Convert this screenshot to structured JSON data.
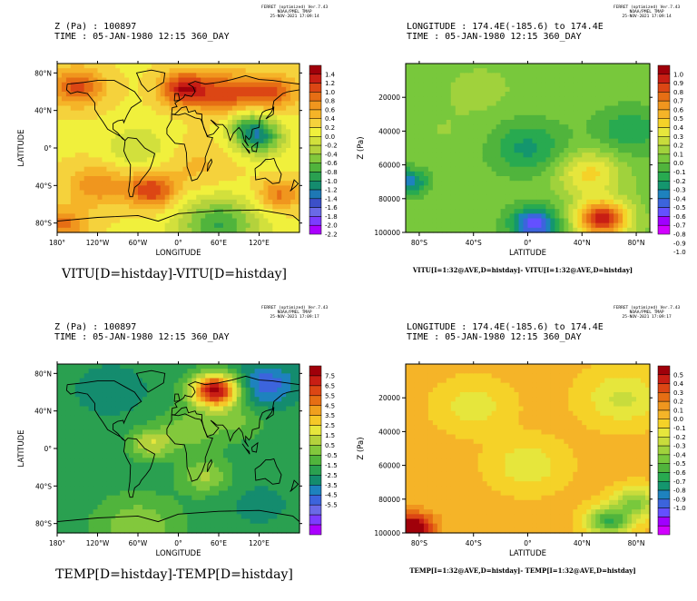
{
  "ferret": {
    "line1": "FERRET (optimized) Ver.7.43",
    "line2": "NOAA/PMEL TMAP",
    "time_top": "25-NOV-2021 17:09:14",
    "time_bottom": "25-NOV-2021 17:09:17"
  },
  "palette": {
    "vitu_map": [
      "#aa00ff",
      "#7c3cff",
      "#6a6ae6",
      "#3c50c8",
      "#1e78b4",
      "#148c6e",
      "#2aa050",
      "#50b43c",
      "#82c83c",
      "#b4d23c",
      "#d2e03c",
      "#f0f03c",
      "#f5d23c",
      "#f5b428",
      "#f0961e",
      "#e66e14",
      "#dc4614",
      "#c81e14",
      "#a0000a"
    ],
    "vitu_xz": [
      "#d200ff",
      "#a000ff",
      "#6450ff",
      "#3c64dc",
      "#1e82be",
      "#14966e",
      "#28aa50",
      "#50b43c",
      "#78c83c",
      "#a0d23c",
      "#c8dc3c",
      "#e6e63c",
      "#f5d228",
      "#f5b428",
      "#f0961e",
      "#e66e14",
      "#dc4614",
      "#c81e14",
      "#a0000a"
    ],
    "temp_map": [
      "#aa00ff",
      "#7c3cff",
      "#6a6ae6",
      "#3c64dc",
      "#1e82be",
      "#148c6e",
      "#2aa050",
      "#50b43c",
      "#82c83c",
      "#b4d23c",
      "#e6e63c",
      "#f5c828",
      "#f0a01e",
      "#e66e14",
      "#dc4614",
      "#c81e14",
      "#a0000a"
    ],
    "temp_xz": [
      "#d200ff",
      "#a000ff",
      "#6450ff",
      "#3c64dc",
      "#1e82be",
      "#14966e",
      "#28aa50",
      "#50b43c",
      "#78c83c",
      "#a0d23c",
      "#c8dc3c",
      "#e6e63c",
      "#f5d228",
      "#f5b428",
      "#f0961e",
      "#e66e14",
      "#dc4614",
      "#c81e14",
      "#a0000a"
    ]
  },
  "chart_data": [
    {
      "type": "heatmap",
      "variable": "VITU",
      "header_line1": "Z (Pa) : 100897",
      "header_line2": "TIME : 05-JAN-1980 12:15 360_DAY",
      "title": "VITU[D=histday]-VITU[D=histday]",
      "xlabel": "LONGITUDE",
      "ylabel": "LATITUDE",
      "xlim": [
        -180,
        180
      ],
      "ylim": [
        -90,
        90
      ],
      "x_ticks": [
        "180°",
        "120°W",
        "60°W",
        "0°",
        "60°E",
        "120°E"
      ],
      "y_ticks": [
        "80°N",
        "40°N",
        "0°",
        "40°S",
        "80°S"
      ],
      "colorbar_labels": [
        "1.4",
        "1.2",
        "1.0",
        "0.8",
        "0.6",
        "0.4",
        "0.2",
        "0.0",
        "-0.2",
        "-0.4",
        "-0.6",
        "-0.8",
        "-1.0",
        "-1.2",
        "-1.4",
        "-1.6",
        "-1.8",
        "-2.0",
        "-2.2"
      ],
      "levels": [
        -2.2,
        1.4
      ],
      "background_value": 0.05,
      "features": [
        {
          "lon": -150,
          "lat": 65,
          "value": 0.9,
          "spread": 1.0
        },
        {
          "lon": 10,
          "lat": 63,
          "value": 1.2,
          "spread": 0.9
        },
        {
          "lon": 75,
          "lat": 58,
          "value": 0.9,
          "spread": 1.1
        },
        {
          "lon": 140,
          "lat": 60,
          "value": 0.8,
          "spread": 0.9
        },
        {
          "lon": 120,
          "lat": 10,
          "value": -1.0,
          "spread": 0.9
        },
        {
          "lon": 105,
          "lat": 25,
          "value": -0.6,
          "spread": 0.8
        },
        {
          "lon": -60,
          "lat": 0,
          "value": -0.3,
          "spread": 1.2
        },
        {
          "lon": -40,
          "lat": -45,
          "value": 1.0,
          "spread": 0.9
        },
        {
          "lon": -120,
          "lat": -40,
          "value": 0.6,
          "spread": 1.1
        },
        {
          "lon": 150,
          "lat": -50,
          "value": 0.7,
          "spread": 0.8
        },
        {
          "lon": 60,
          "lat": -82,
          "value": -0.9,
          "spread": 1.5
        },
        {
          "lon": -170,
          "lat": -82,
          "value": 0.7,
          "spread": 0.9
        },
        {
          "lon": 30,
          "lat": -20,
          "value": 0.3,
          "spread": 1.4
        }
      ]
    },
    {
      "type": "heatmap",
      "variable": "VITU",
      "header_line1": "LONGITUDE : 174.4E(-185.6) to 174.4E",
      "header_line2": "TIME : 05-JAN-1980 12:15 360_DAY",
      "title": "VITU[I=1:32@AVE,D=histday]- VITU[I=1:32@AVE,D=histday]",
      "xlabel": "LATITUDE",
      "ylabel": "Z (Pa)",
      "xlim": [
        -90,
        90
      ],
      "ylim": [
        100000,
        0
      ],
      "x_ticks": [
        "80°S",
        "40°S",
        "0°",
        "40°N",
        "80°N"
      ],
      "y_ticks": [
        "20000",
        "40000",
        "60000",
        "80000",
        "100000"
      ],
      "colorbar_labels": [
        "1.0",
        "0.9",
        "0.8",
        "0.7",
        "0.6",
        "0.5",
        "0.4",
        "0.3",
        "0.2",
        "0.1",
        "0.0",
        "-0.1",
        "-0.2",
        "-0.3",
        "-0.4",
        "-0.5",
        "-0.6",
        "-0.7",
        "-0.8",
        "-0.9",
        "-1.0"
      ],
      "levels": [
        -1.0,
        1.0
      ],
      "background_value": -0.1,
      "features": [
        {
          "lat": 5,
          "z": 95000,
          "value": -0.75,
          "spread": 0.9
        },
        {
          "lat": 0,
          "z": 50000,
          "value": -0.4,
          "spread": 1.4
        },
        {
          "lat": 55,
          "z": 92000,
          "value": 0.85,
          "spread": 1.0
        },
        {
          "lat": 45,
          "z": 65000,
          "value": 0.3,
          "spread": 1.2
        },
        {
          "lat": 75,
          "z": 40000,
          "value": -0.35,
          "spread": 1.3
        },
        {
          "lat": -60,
          "z": 40000,
          "value": -0.05,
          "spread": 1.5
        },
        {
          "lat": -88,
          "z": 70000,
          "value": -0.55,
          "spread": 0.7
        },
        {
          "lat": -35,
          "z": 15000,
          "value": 0.0,
          "spread": 1.2
        }
      ]
    },
    {
      "type": "heatmap",
      "variable": "TEMP",
      "header_line1": "Z (Pa) : 100897",
      "header_line2": "TIME : 05-JAN-1980 12:15 360_DAY",
      "title": "TEMP[D=histday]-TEMP[D=histday]",
      "xlabel": "LONGITUDE",
      "ylabel": "LATITUDE",
      "xlim": [
        -180,
        180
      ],
      "ylim": [
        -90,
        90
      ],
      "x_ticks": [
        "180°",
        "120°W",
        "60°W",
        "0°",
        "60°E",
        "120°E"
      ],
      "y_ticks": [
        "80°N",
        "40°N",
        "0°",
        "40°S",
        "80°S"
      ],
      "colorbar_labels": [
        "7.5",
        "6.5",
        "5.5",
        "4.5",
        "3.5",
        "2.5",
        "1.5",
        "0.5",
        "-0.5",
        "-1.5",
        "-2.5",
        "-3.5",
        "-4.5",
        "-5.5"
      ],
      "levels": [
        -5.5,
        7.5
      ],
      "background_value": -0.6,
      "features": [
        {
          "lon": 55,
          "lat": 62,
          "value": 7.0,
          "spread": 0.9
        },
        {
          "lon": 130,
          "lat": 68,
          "value": -3.0,
          "spread": 1.1
        },
        {
          "lon": -100,
          "lat": 62,
          "value": -1.5,
          "spread": 1.3
        },
        {
          "lon": -40,
          "lat": 5,
          "value": 2.0,
          "spread": 0.8
        },
        {
          "lon": 20,
          "lat": 20,
          "value": 1.0,
          "spread": 1.2
        },
        {
          "lon": 40,
          "lat": -30,
          "value": 1.5,
          "spread": 0.9
        },
        {
          "lon": -60,
          "lat": -82,
          "value": 1.2,
          "spread": 1.6
        },
        {
          "lon": 120,
          "lat": -60,
          "value": -1.2,
          "spread": 1.2
        },
        {
          "lon": 90,
          "lat": 30,
          "value": 0.6,
          "spread": 1.0
        }
      ]
    },
    {
      "type": "heatmap",
      "variable": "TEMP",
      "header_line1": "LONGITUDE : 174.4E(-185.6) to 174.4E",
      "header_line2": "TIME : 05-JAN-1980 12:15 360_DAY",
      "title": "TEMP[I=1:32@AVE,D=histday]- TEMP[I=1:32@AVE,D=histday]",
      "xlabel": "LATITUDE",
      "ylabel": "Z (Pa)",
      "xlim": [
        -90,
        90
      ],
      "ylim": [
        100000,
        0
      ],
      "x_ticks": [
        "80°S",
        "40°S",
        "0°",
        "40°N",
        "80°N"
      ],
      "y_ticks": [
        "20000",
        "40000",
        "60000",
        "80000",
        "100000"
      ],
      "colorbar_labels": [
        "0.5",
        "0.4",
        "0.3",
        "0.2",
        "0.1",
        "0.0",
        "-0.1",
        "-0.2",
        "-0.3",
        "-0.4",
        "-0.5",
        "-0.6",
        "-0.7",
        "-0.8",
        "-0.9",
        "-1.0"
      ],
      "levels": [
        -1.0,
        0.5
      ],
      "background_value": 0.05,
      "features": [
        {
          "lat": -85,
          "z": 97000,
          "value": 0.55,
          "spread": 0.8
        },
        {
          "lat": 60,
          "z": 93000,
          "value": -0.45,
          "spread": 0.8
        },
        {
          "lat": 0,
          "z": 60000,
          "value": -0.12,
          "spread": 1.3
        },
        {
          "lat": -40,
          "z": 25000,
          "value": -0.1,
          "spread": 1.3
        },
        {
          "lat": 70,
          "z": 20000,
          "value": -0.15,
          "spread": 1.4
        },
        {
          "lat": 80,
          "z": 82000,
          "value": -0.3,
          "spread": 0.8
        }
      ]
    }
  ]
}
